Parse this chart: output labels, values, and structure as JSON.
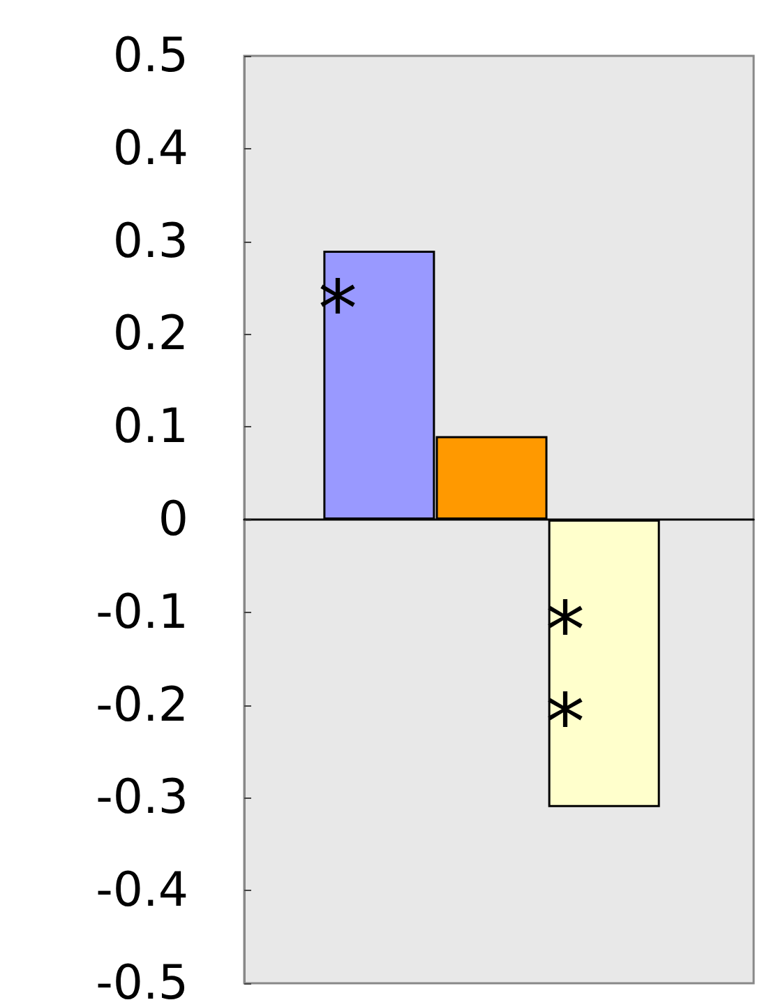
{
  "chart_data": {
    "type": "bar",
    "categories": [
      null,
      null,
      null
    ],
    "values": [
      0.29,
      0.09,
      -0.31
    ],
    "colors": [
      "#9999ff",
      "#ff9900",
      "#ffffcc"
    ],
    "ylim": [
      -0.5,
      0.5
    ],
    "yticks": [
      -0.5,
      -0.4,
      -0.3,
      -0.2,
      -0.1,
      0,
      0.1,
      0.2,
      0.3,
      0.4,
      0.5
    ],
    "annotations": [
      "*",
      "*",
      "*"
    ]
  }
}
